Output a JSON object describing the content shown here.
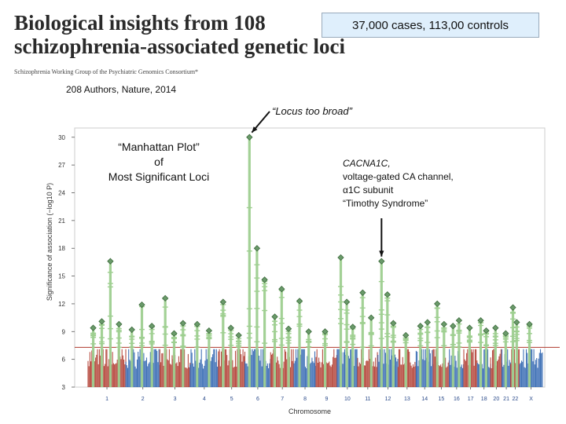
{
  "slide": {
    "title_line1": "Biological insights from 108",
    "title_line2": "schizophrenia-associated genetic loci",
    "consortium": "Schizophrenia Working Group of the Psychiatric Genomics Consortium*",
    "authors": "208 Authors, Nature, 2014",
    "cases_note": "37,000 cases, 113,00 controls"
  },
  "annotations": {
    "locus_too_broad": "“Locus too broad”",
    "manhattan_line1": "“Manhattan Plot”",
    "manhattan_line2": "of",
    "manhattan_line3": "Most Significant Loci",
    "gene_name": "CACNA1C,",
    "gene_line2": "voltage-gated CA channel,",
    "gene_line3": "α1C subunit",
    "gene_line4": "“Timothy Syndrome”"
  },
  "chart_data": {
    "type": "scatter",
    "title": "Manhattan Plot",
    "xlabel": "Chromosome",
    "ylabel": "Significance of association (−log10 P)",
    "ylim": [
      3,
      31
    ],
    "yticks": [
      3,
      6,
      9,
      12,
      15,
      18,
      21,
      24,
      27,
      30
    ],
    "significance_threshold": 7.3,
    "chromosomes": [
      "1",
      "2",
      "3",
      "4",
      "5",
      "6",
      "7",
      "8",
      "9",
      "10",
      "11",
      "12",
      "13",
      "14",
      "15",
      "16",
      "17",
      "18",
      "20",
      "21",
      "22",
      "X"
    ],
    "colors": {
      "odd": "#b03a2e",
      "even": "#2e64b0",
      "significant": "#9ecf90",
      "diamond": "#6a9a6a",
      "threshold": "#b03a2e"
    },
    "peaks": [
      {
        "chr": "1",
        "y": 9.4
      },
      {
        "chr": "1",
        "y": 10.1
      },
      {
        "chr": "1",
        "y": 16.6
      },
      {
        "chr": "1",
        "y": 9.8
      },
      {
        "chr": "2",
        "y": 9.2
      },
      {
        "chr": "2",
        "y": 11.9
      },
      {
        "chr": "2",
        "y": 9.6
      },
      {
        "chr": "3",
        "y": 12.6
      },
      {
        "chr": "3",
        "y": 8.8
      },
      {
        "chr": "3",
        "y": 9.9
      },
      {
        "chr": "4",
        "y": 9.8
      },
      {
        "chr": "4",
        "y": 9.1
      },
      {
        "chr": "5",
        "y": 12.2
      },
      {
        "chr": "5",
        "y": 9.4
      },
      {
        "chr": "5",
        "y": 8.6
      },
      {
        "chr": "6",
        "y": 30.0
      },
      {
        "chr": "6",
        "y": 18.0
      },
      {
        "chr": "6",
        "y": 14.6
      },
      {
        "chr": "7",
        "y": 10.6
      },
      {
        "chr": "7",
        "y": 13.6
      },
      {
        "chr": "7",
        "y": 9.3
      },
      {
        "chr": "8",
        "y": 12.3
      },
      {
        "chr": "8",
        "y": 9.0
      },
      {
        "chr": "9",
        "y": 9.0
      },
      {
        "chr": "10",
        "y": 17.0
      },
      {
        "chr": "10",
        "y": 12.2
      },
      {
        "chr": "10",
        "y": 9.5
      },
      {
        "chr": "11",
        "y": 13.2
      },
      {
        "chr": "11",
        "y": 10.5
      },
      {
        "chr": "12",
        "y": 16.6
      },
      {
        "chr": "12",
        "y": 13.0
      },
      {
        "chr": "12",
        "y": 9.9
      },
      {
        "chr": "13",
        "y": 8.6
      },
      {
        "chr": "14",
        "y": 9.6
      },
      {
        "chr": "14",
        "y": 10.0
      },
      {
        "chr": "15",
        "y": 12.0
      },
      {
        "chr": "15",
        "y": 9.8
      },
      {
        "chr": "16",
        "y": 9.6
      },
      {
        "chr": "16",
        "y": 10.2
      },
      {
        "chr": "17",
        "y": 9.4
      },
      {
        "chr": "18",
        "y": 10.2
      },
      {
        "chr": "18",
        "y": 9.1
      },
      {
        "chr": "20",
        "y": 9.4
      },
      {
        "chr": "21",
        "y": 8.8
      },
      {
        "chr": "22",
        "y": 11.6
      },
      {
        "chr": "22",
        "y": 10.0
      },
      {
        "chr": "X",
        "y": 9.8
      }
    ]
  }
}
